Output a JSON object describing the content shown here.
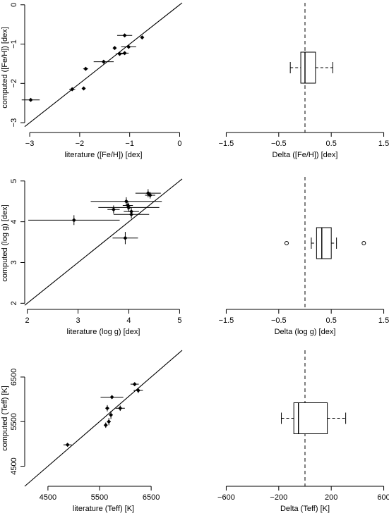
{
  "chart_data": [
    {
      "type": "scatter",
      "xlabel": "literature ([Fe/H]) [dex]",
      "ylabel": "computed ([Fe/H]) [dex]",
      "xlim": [
        -3.1,
        0.05
      ],
      "ylim": [
        -3.25,
        0.05
      ],
      "xticks": [
        {
          "v": -3,
          "label": "−3"
        },
        {
          "v": -2,
          "label": "−2"
        },
        {
          "v": -1,
          "label": "−1"
        },
        {
          "v": 0,
          "label": "0"
        }
      ],
      "yticks": [
        {
          "v": -3,
          "label": "−3"
        },
        {
          "v": -2,
          "label": "−2"
        },
        {
          "v": -1,
          "label": "−1"
        },
        {
          "v": 0,
          "label": "0"
        }
      ],
      "diagonal": true,
      "points": [
        {
          "x": -2.98,
          "y": -2.42,
          "xerr": 0.18
        },
        {
          "x": -2.15,
          "y": -2.15,
          "xerr": 0.06
        },
        {
          "x": -1.92,
          "y": -2.13,
          "xerr": 0
        },
        {
          "x": -1.88,
          "y": -1.63,
          "xerr": 0.05
        },
        {
          "x": -1.52,
          "y": -1.45,
          "xerr": 0.2
        },
        {
          "x": -1.3,
          "y": -1.1,
          "xerr": 0
        },
        {
          "x": -1.2,
          "y": -1.25,
          "xerr": 0.08
        },
        {
          "x": -1.1,
          "y": -1.23,
          "xerr": 0.08
        },
        {
          "x": -1.1,
          "y": -0.78,
          "xerr": 0.15
        },
        {
          "x": -1.02,
          "y": -1.07,
          "xerr": 0.15
        },
        {
          "x": -0.75,
          "y": -0.83,
          "xerr": 0
        }
      ]
    },
    {
      "type": "boxplot",
      "xlabel": "Delta ([Fe/H]) [dex]",
      "xlim": [
        -1.6,
        1.6
      ],
      "xticks": [
        {
          "v": -1.5,
          "label": "−1.5"
        },
        {
          "v": -0.5,
          "label": "−0.5"
        },
        {
          "v": 0.5,
          "label": "0.5"
        },
        {
          "v": 1.5,
          "label": "1.5"
        }
      ],
      "zero_line": 0,
      "whisker_low": -0.28,
      "q1": -0.08,
      "median": 0,
      "q3": 0.2,
      "whisker_high": 0.53,
      "outliers": []
    },
    {
      "type": "scatter",
      "xlabel": "literature (log g) [dex]",
      "ylabel": "computed (log g) [dex]",
      "xlim": [
        1.95,
        5.05
      ],
      "ylim": [
        1.85,
        5.1
      ],
      "xticks": [
        {
          "v": 2,
          "label": "2"
        },
        {
          "v": 3,
          "label": "3"
        },
        {
          "v": 4,
          "label": "4"
        },
        {
          "v": 5,
          "label": "5"
        }
      ],
      "yticks": [
        {
          "v": 2,
          "label": "2"
        },
        {
          "v": 3,
          "label": "3"
        },
        {
          "v": 4,
          "label": "4"
        },
        {
          "v": 5,
          "label": "5"
        }
      ],
      "diagonal": true,
      "points": [
        {
          "x": 2.92,
          "y": 4.04,
          "xerr": 0.9,
          "yerr": 0.12
        },
        {
          "x": 3.7,
          "y": 4.3,
          "xerr": 0.12,
          "yerr": 0.1
        },
        {
          "x": 3.95,
          "y": 4.5,
          "xerr": 0.7,
          "yerr": 0.1
        },
        {
          "x": 3.98,
          "y": 4.4,
          "xerr": 0.1,
          "yerr": 0.1
        },
        {
          "x": 4.0,
          "y": 4.35,
          "xerr": 0.6,
          "yerr": 0.1
        },
        {
          "x": 4.05,
          "y": 4.25,
          "xerr": 0.15,
          "yerr": 0.1
        },
        {
          "x": 4.05,
          "y": 4.18,
          "xerr": 0.35,
          "yerr": 0.1
        },
        {
          "x": 3.93,
          "y": 3.6,
          "xerr": 0.25,
          "yerr": 0.15
        },
        {
          "x": 4.38,
          "y": 4.7,
          "xerr": 0.25,
          "yerr": 0.1
        },
        {
          "x": 4.42,
          "y": 4.65,
          "xerr": 0.1,
          "yerr": 0.08
        }
      ]
    },
    {
      "type": "boxplot",
      "xlabel": "Delta (log g) [dex]",
      "xlim": [
        -1.6,
        1.6
      ],
      "xticks": [
        {
          "v": -1.5,
          "label": "−1.5"
        },
        {
          "v": -0.5,
          "label": "−0.5"
        },
        {
          "v": 0.5,
          "label": "0.5"
        },
        {
          "v": 1.5,
          "label": "1.5"
        }
      ],
      "zero_line": 0,
      "whisker_low": 0.12,
      "q1": 0.22,
      "median": 0.32,
      "q3": 0.5,
      "whisker_high": 0.6,
      "outliers": [
        -0.35,
        1.12
      ]
    },
    {
      "type": "scatter",
      "xlabel": "literature (Teff) [K]",
      "ylabel": "computed (Teff) [K]",
      "xlim": [
        4050,
        7100
      ],
      "ylim": [
        4050,
        7100
      ],
      "xticks": [
        {
          "v": 4500,
          "label": "4500"
        },
        {
          "v": 5500,
          "label": "5500"
        },
        {
          "v": 6500,
          "label": "6500"
        }
      ],
      "yticks": [
        {
          "v": 4500,
          "label": "4500"
        },
        {
          "v": 5500,
          "label": "5500"
        },
        {
          "v": 6500,
          "label": "6500"
        }
      ],
      "diagonal": true,
      "points": [
        {
          "x": 4880,
          "y": 4980,
          "xerr": 80
        },
        {
          "x": 5620,
          "y": 5420,
          "xerr": 0,
          "yerr": 60
        },
        {
          "x": 5650,
          "y": 5800,
          "xerr": 0,
          "yerr": 70
        },
        {
          "x": 5680,
          "y": 5500,
          "xerr": 0,
          "yerr": 80
        },
        {
          "x": 5720,
          "y": 5650,
          "xerr": 0,
          "yerr": 90
        },
        {
          "x": 5740,
          "y": 6050,
          "xerr": 220,
          "yerr": 40
        },
        {
          "x": 5900,
          "y": 5800,
          "xerr": 90,
          "yerr": 60
        },
        {
          "x": 6180,
          "y": 6340,
          "xerr": 80,
          "yerr": 40
        },
        {
          "x": 6250,
          "y": 6200,
          "xerr": 90,
          "yerr": 60
        }
      ]
    },
    {
      "type": "boxplot",
      "xlabel": "Delta (Teff) [K]",
      "xlim": [
        -640,
        640
      ],
      "xticks": [
        {
          "v": -600,
          "label": "−600"
        },
        {
          "v": -200,
          "label": "−200"
        },
        {
          "v": 200,
          "label": "200"
        },
        {
          "v": 600,
          "label": "600"
        }
      ],
      "zero_line": 0,
      "whisker_low": -180,
      "q1": -85,
      "median": -50,
      "q3": 170,
      "whisker_high": 310,
      "outliers": []
    }
  ]
}
